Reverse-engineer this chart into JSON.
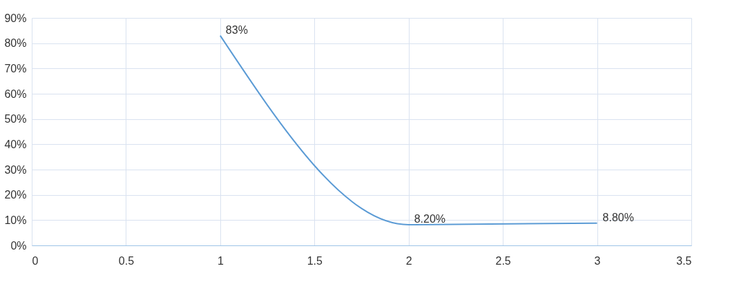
{
  "chart_data": {
    "type": "line",
    "x": [
      1,
      2,
      3
    ],
    "series": [
      {
        "color": "#5b9bd5",
        "values": [
          83,
          8.2,
          8.8
        ],
        "value_labels": [
          "83%",
          "8.20%",
          "8.80%"
        ]
      }
    ],
    "xlim": [
      0,
      3.5
    ],
    "xticks": [
      0,
      0.5,
      1,
      1.5,
      2,
      2.5,
      3,
      3.5
    ],
    "ylim": [
      0,
      90
    ],
    "yticks": [
      {
        "value": 0,
        "label": "0%"
      },
      {
        "value": 10,
        "label": "10%"
      },
      {
        "value": 20,
        "label": "20%"
      },
      {
        "value": 30,
        "label": "30%"
      },
      {
        "value": 40,
        "label": "40%"
      },
      {
        "value": 50,
        "label": "50%"
      },
      {
        "value": 60,
        "label": "60%"
      },
      {
        "value": 70,
        "label": "70%"
      },
      {
        "value": 80,
        "label": "80%"
      },
      {
        "value": 90,
        "label": "90%"
      }
    ],
    "grid": true
  }
}
